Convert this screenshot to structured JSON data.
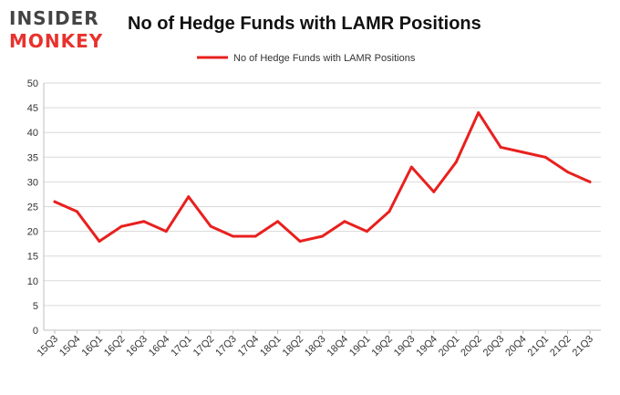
{
  "logo": {
    "line1": "INSIDER",
    "line2": "MONKEY"
  },
  "colors": {
    "series": "#e8201e",
    "grid": "#d9d9d9",
    "frame": "#bfbfbf",
    "logo_dark": "#444444",
    "logo_red": "#e8322d"
  },
  "chart_data": {
    "type": "line",
    "title": "No of Hedge Funds with LAMR Positions",
    "xlabel": "",
    "ylabel": "",
    "ylim": [
      0,
      50
    ],
    "yticks": [
      0,
      5,
      10,
      15,
      20,
      25,
      30,
      35,
      40,
      45,
      50
    ],
    "grid": "horizontal",
    "legend_position": "top-center",
    "categories": [
      "15Q3",
      "15Q4",
      "16Q1",
      "16Q2",
      "16Q3",
      "16Q4",
      "17Q1",
      "17Q2",
      "17Q3",
      "17Q4",
      "18Q1",
      "18Q2",
      "18Q3",
      "18Q4",
      "19Q1",
      "19Q2",
      "19Q3",
      "19Q4",
      "20Q1",
      "20Q2",
      "20Q3",
      "20Q4",
      "21Q1",
      "21Q2",
      "21Q3"
    ],
    "series": [
      {
        "name": "No of Hedge Funds with LAMR Positions",
        "values": [
          26,
          24,
          18,
          21,
          22,
          20,
          27,
          21,
          19,
          19,
          22,
          18,
          19,
          22,
          20,
          24,
          33,
          28,
          34,
          44,
          37,
          36,
          35,
          32,
          30
        ]
      }
    ]
  }
}
